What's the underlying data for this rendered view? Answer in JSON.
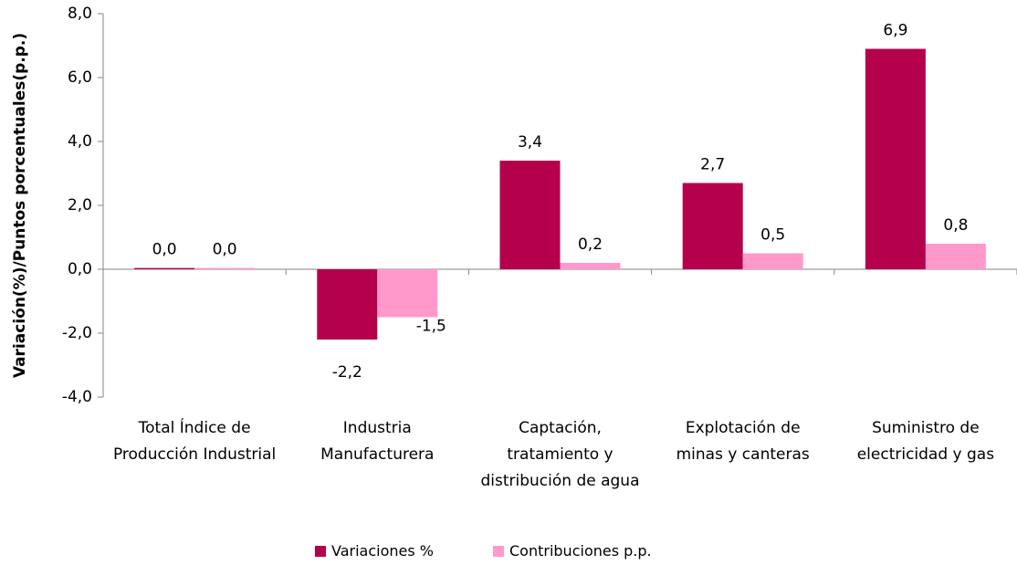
{
  "chart_data": {
    "type": "bar",
    "y_label": "Variación(%)/Puntos porcentuales(p.p.)",
    "categories": [
      "Total Índice de Producción Industrial",
      "Industria Manufacturera",
      "Captación, tratamiento y distribución de agua",
      "Explotación de minas y canteras",
      "Suministro de electricidad y gas"
    ],
    "series": [
      {
        "name": "Variaciones %",
        "color": "#b5004b",
        "values": [
          0.04,
          -2.2,
          3.4,
          2.7,
          6.9
        ],
        "value_labels": [
          "0,0",
          "-2,2",
          "3,4",
          "2,7",
          "6,9"
        ]
      },
      {
        "name": "Contribuciones p.p.",
        "color": "#ff99cc",
        "values": [
          0.04,
          -1.5,
          0.2,
          0.5,
          0.8
        ],
        "value_labels": [
          "0,0",
          "-1,5",
          "0,2",
          "0,5",
          "0,8"
        ]
      }
    ],
    "ylim": [
      -4,
      8
    ],
    "yticks": [
      {
        "value": -4,
        "label": "-4,0"
      },
      {
        "value": -2,
        "label": "-2,0"
      },
      {
        "value": 0,
        "label": "0,0"
      },
      {
        "value": 2,
        "label": "2,0"
      },
      {
        "value": 4,
        "label": "4,0"
      },
      {
        "value": 6,
        "label": "6,0"
      },
      {
        "value": 8,
        "label": "8,0"
      }
    ],
    "legend": "bottom"
  }
}
